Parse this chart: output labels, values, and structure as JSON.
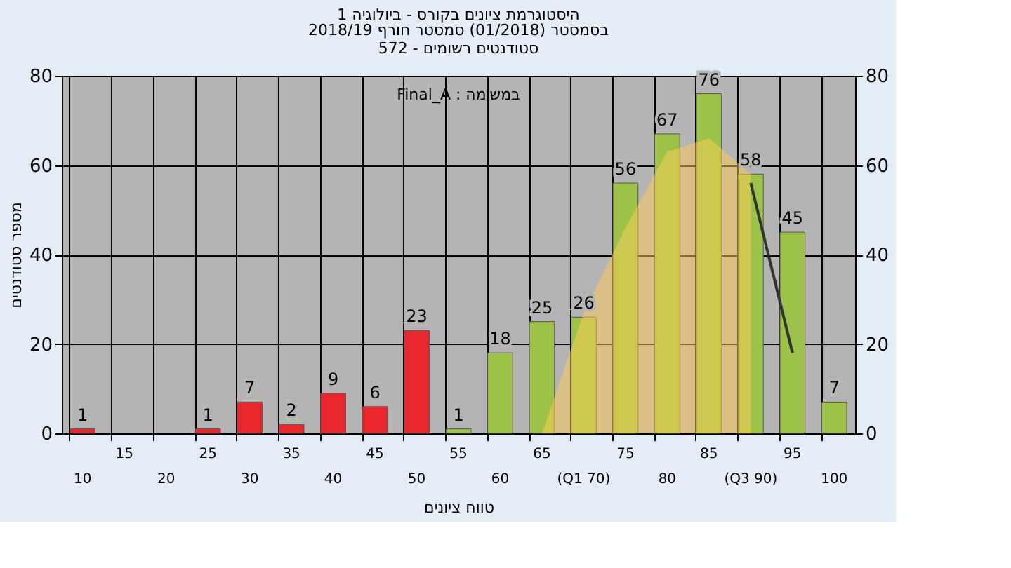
{
  "chart_data": {
    "type": "bar",
    "title": "היסטוגרמת ציונים בקורס - ביולוגיה 1",
    "subtitle": [
      "בסמסטר  (01/2018)  סמסטר חורף 2018/19",
      "סטודנטים רשומים - 572"
    ],
    "xlabel": "טווח ציונים",
    "ylabel": "מספר סטודנטים",
    "annotations": [
      "Final_A : במשימה"
    ],
    "categories": [
      "10",
      "15",
      "20",
      "25",
      "30",
      "35",
      "40",
      "45",
      "50",
      "55",
      "60",
      "65",
      "(Q1 70)",
      "75",
      "80",
      "85",
      "(Q3 90)",
      "95",
      "100"
    ],
    "series": [
      {
        "type": "area",
        "color": "#ffcc55",
        "values": [
          null,
          null,
          null,
          null,
          null,
          null,
          null,
          null,
          null,
          null,
          null,
          0,
          27,
          46,
          63,
          66,
          58,
          null,
          null
        ]
      },
      {
        "type": "line",
        "color": "#333333",
        "values": [
          null,
          null,
          null,
          null,
          null,
          null,
          null,
          null,
          null,
          null,
          null,
          null,
          null,
          null,
          null,
          null,
          56,
          18,
          null
        ]
      },
      {
        "values": [
          1,
          null,
          null,
          1,
          7,
          2,
          9,
          6,
          23,
          1,
          18,
          25,
          26,
          56,
          67,
          76,
          58,
          45,
          7
        ],
        "value_labels": [
          "1",
          null,
          null,
          "1",
          "7",
          "2",
          "9",
          "6",
          "23",
          "1",
          "18",
          "25",
          "26",
          "56",
          "67",
          "76",
          "58",
          "45",
          "7"
        ],
        "colors": [
          "#e8282c",
          "#e8282c",
          "#e8282c",
          "#e8282c",
          "#e8282c",
          "#e8282c",
          "#e8282c",
          "#e8282c",
          "#e8282c",
          "#9cc24a",
          "#9cc24a",
          "#9cc24a",
          "#9cc24a",
          "#9cc24a",
          "#9cc24a",
          "#9cc24a",
          "#9cc24a",
          "#9cc24a",
          "#9cc24a"
        ]
      }
    ],
    "ylim": [
      0,
      80
    ],
    "yticks": [
      0,
      20,
      40,
      60,
      80
    ],
    "y2lim": [
      0,
      80
    ],
    "y2ticks": [
      0,
      20,
      40,
      60,
      80
    ],
    "grid": true
  }
}
